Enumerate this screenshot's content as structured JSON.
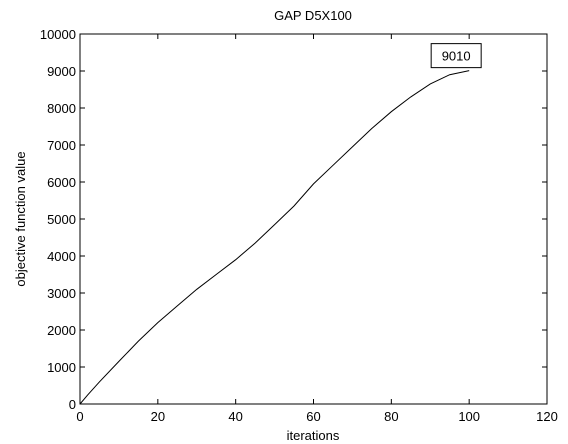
{
  "chart_data": {
    "type": "line",
    "title": "GAP D5X100",
    "xlabel": "iterations",
    "ylabel": "objective function value",
    "xlim": [
      0,
      120
    ],
    "ylim": [
      0,
      10000
    ],
    "xticks": [
      0,
      20,
      40,
      60,
      80,
      100,
      120
    ],
    "yticks": [
      0,
      1000,
      2000,
      3000,
      4000,
      5000,
      6000,
      7000,
      8000,
      9000,
      10000
    ],
    "grid": false,
    "series": [
      {
        "x": [
          0,
          2,
          5,
          10,
          15,
          20,
          25,
          30,
          35,
          40,
          45,
          50,
          55,
          60,
          65,
          70,
          75,
          80,
          85,
          90,
          95,
          100
        ],
        "y": [
          0,
          250,
          600,
          1150,
          1700,
          2200,
          2650,
          3100,
          3500,
          3900,
          4350,
          4850,
          5350,
          5950,
          6450,
          6950,
          7450,
          7900,
          8300,
          8650,
          8900,
          9010
        ]
      }
    ],
    "annotation": {
      "text": "9010",
      "x": 100,
      "y": 9010
    }
  }
}
